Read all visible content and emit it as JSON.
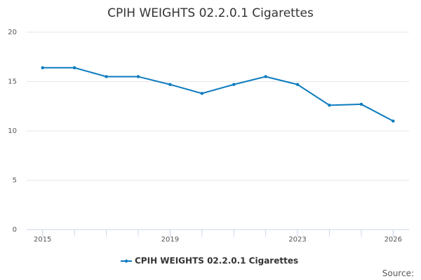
{
  "chart_data": {
    "type": "line",
    "title": "CPIH WEIGHTS 02.2.0.1 Cigarettes",
    "x": [
      2015,
      2016,
      2017,
      2018,
      2019,
      2020,
      2021,
      2022,
      2023,
      2024,
      2025,
      2026
    ],
    "series": [
      {
        "name": "CPIH WEIGHTS 02.2.0.1 Cigarettes",
        "color": "#0c7bbf",
        "values": [
          16.4,
          16.4,
          15.5,
          15.5,
          14.7,
          13.8,
          14.7,
          15.5,
          14.7,
          12.6,
          12.7,
          11.0
        ]
      }
    ],
    "xlim": [
      2014.5,
      2026.5
    ],
    "xticks": [
      2015,
      2019,
      2023,
      2026
    ],
    "ylim": [
      0,
      20
    ],
    "yticks": [
      0,
      5,
      10,
      15,
      20
    ],
    "grid": true,
    "legend": "bottom",
    "source": "Source:"
  }
}
